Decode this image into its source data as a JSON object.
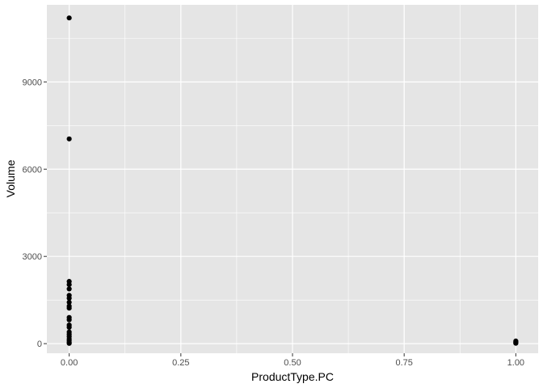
{
  "chart_data": {
    "type": "scatter",
    "title": "",
    "xlabel": "ProductType.PC",
    "ylabel": "Volume",
    "xlim": [
      -0.05,
      1.05
    ],
    "ylim": [
      -330,
      11650
    ],
    "x_ticks": [
      0.0,
      0.25,
      0.5,
      0.75,
      1.0
    ],
    "x_tick_labels": [
      "0.00",
      "0.25",
      "0.50",
      "0.75",
      "1.00"
    ],
    "y_ticks": [
      0,
      3000,
      6000,
      9000
    ],
    "y_tick_labels": [
      "0",
      "3000",
      "6000",
      "9000"
    ],
    "grid": true,
    "legend": "none",
    "colors": {
      "panel_bg": "#e5e5e5",
      "grid_major": "#ffffff",
      "point": "#000000",
      "tick_mark": "#333333"
    },
    "points": [
      {
        "x": 0,
        "y": 11200
      },
      {
        "x": 0,
        "y": 7040
      },
      {
        "x": 0,
        "y": 2140
      },
      {
        "x": 0,
        "y": 2030
      },
      {
        "x": 0,
        "y": 1880
      },
      {
        "x": 0,
        "y": 1660
      },
      {
        "x": 0,
        "y": 1560
      },
      {
        "x": 0,
        "y": 1420
      },
      {
        "x": 0,
        "y": 1290
      },
      {
        "x": 0,
        "y": 1220
      },
      {
        "x": 0,
        "y": 900
      },
      {
        "x": 0,
        "y": 820
      },
      {
        "x": 0,
        "y": 640
      },
      {
        "x": 0,
        "y": 560
      },
      {
        "x": 0,
        "y": 400
      },
      {
        "x": 0,
        "y": 320
      },
      {
        "x": 0,
        "y": 240
      },
      {
        "x": 0,
        "y": 160
      },
      {
        "x": 0,
        "y": 100
      },
      {
        "x": 0,
        "y": 40
      },
      {
        "x": 0,
        "y": 10
      },
      {
        "x": 1,
        "y": 90
      },
      {
        "x": 1,
        "y": 60
      },
      {
        "x": 1,
        "y": 30
      },
      {
        "x": 1,
        "y": 12
      }
    ]
  }
}
